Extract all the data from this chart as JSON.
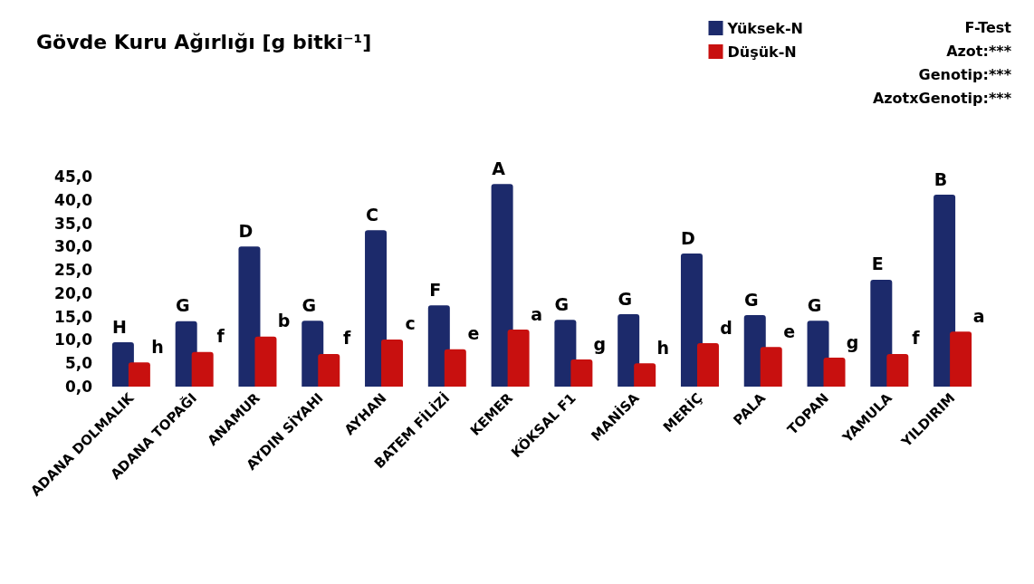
{
  "chart_data": {
    "type": "bar",
    "title": "Gövde Kuru Ağırlığı [g bitki⁻¹]",
    "categories": [
      "ADANA DOLMALIK",
      "ADANA TOPAĞI",
      "ANAMUR",
      "AYDIN SİYAHI",
      "AYHAN",
      "BATEM FİLİZİ",
      "KEMER",
      "KÖKSAL F1",
      "MANİSA",
      "MERİÇ",
      "PALA",
      "TOPAN",
      "YAMULA",
      "YILDIRIM"
    ],
    "series": [
      {
        "name": "Yüksek-N",
        "color": "#1c2a6b",
        "values": [
          9.5,
          14.0,
          30.0,
          14.1,
          33.5,
          17.4,
          43.4,
          14.3,
          15.5,
          28.5,
          15.3,
          14.1,
          22.9,
          41.1
        ]
      },
      {
        "name": "Düşük-N",
        "color": "#c8100f",
        "values": [
          5.2,
          7.4,
          10.7,
          7.0,
          10.1,
          8.0,
          12.2,
          5.8,
          5.0,
          9.3,
          8.5,
          6.2,
          7.0,
          11.8
        ]
      }
    ],
    "ylim": [
      0,
      45
    ],
    "yticks": [
      {
        "value": 0,
        "label": "0,0"
      },
      {
        "value": 5,
        "label": "5,0"
      },
      {
        "value": 10,
        "label": "10,0"
      },
      {
        "value": 15,
        "label": "15,0"
      },
      {
        "value": 20,
        "label": "20,0"
      },
      {
        "value": 25,
        "label": "25,0"
      },
      {
        "value": 30,
        "label": "30,0"
      },
      {
        "value": 35,
        "label": "35,0"
      },
      {
        "value": 40,
        "label": "40,0"
      },
      {
        "value": 45,
        "label": "45,0"
      }
    ],
    "grid": false,
    "legend": "top right",
    "annotations": [
      "F-Test",
      "Azot:***",
      "Genotip:***",
      "AzotxGenotip:***",
      {
        "text": "H",
        "x": "ADANA DOLMALIK",
        "y": 9.5
      },
      {
        "text": "h",
        "x": "ADANA DOLMALIK",
        "y": 5.2
      },
      {
        "text": "G",
        "x": "ADANA TOPAĞI",
        "y": 14.0
      },
      {
        "text": "f",
        "x": "ADANA TOPAĞI",
        "y": 7.4
      },
      {
        "text": "D",
        "x": "ANAMUR",
        "y": 30.0
      },
      {
        "text": "b",
        "x": "ANAMUR",
        "y": 10.7
      },
      {
        "text": "G",
        "x": "AYDIN SİYAHI",
        "y": 14.1
      },
      {
        "text": "f",
        "x": "AYDIN SİYAHI",
        "y": 7.0
      },
      {
        "text": "C",
        "x": "AYHAN",
        "y": 33.5
      },
      {
        "text": "c",
        "x": "AYHAN",
        "y": 10.1
      },
      {
        "text": "F",
        "x": "BATEM FİLİZİ",
        "y": 17.4
      },
      {
        "text": "e",
        "x": "BATEM FİLİZİ",
        "y": 8.0
      },
      {
        "text": "A",
        "x": "KEMER",
        "y": 43.4
      },
      {
        "text": "a",
        "x": "KEMER",
        "y": 12.2
      },
      {
        "text": "G",
        "x": "KÖKSAL F1",
        "y": 14.3
      },
      {
        "text": "g",
        "x": "KÖKSAL F1",
        "y": 5.8
      },
      {
        "text": "G",
        "x": "MANİSA",
        "y": 15.5
      },
      {
        "text": "h",
        "x": "MANİSA",
        "y": 5.0
      },
      {
        "text": "D",
        "x": "MERİÇ",
        "y": 28.5
      },
      {
        "text": "d",
        "x": "MERİÇ",
        "y": 9.3
      },
      {
        "text": "G",
        "x": "PALA",
        "y": 15.3
      },
      {
        "text": "e",
        "x": "PALA",
        "y": 8.5
      },
      {
        "text": "G",
        "x": "TOPAN",
        "y": 14.1
      },
      {
        "text": "g",
        "x": "TOPAN",
        "y": 6.2
      },
      {
        "text": "E",
        "x": "YAMULA",
        "y": 22.9
      },
      {
        "text": "f",
        "x": "YAMULA",
        "y": 7.0
      },
      {
        "text": "B",
        "x": "YILDIRIM",
        "y": 41.1
      },
      {
        "text": "a",
        "x": "YILDIRIM",
        "y": 11.8
      }
    ]
  }
}
